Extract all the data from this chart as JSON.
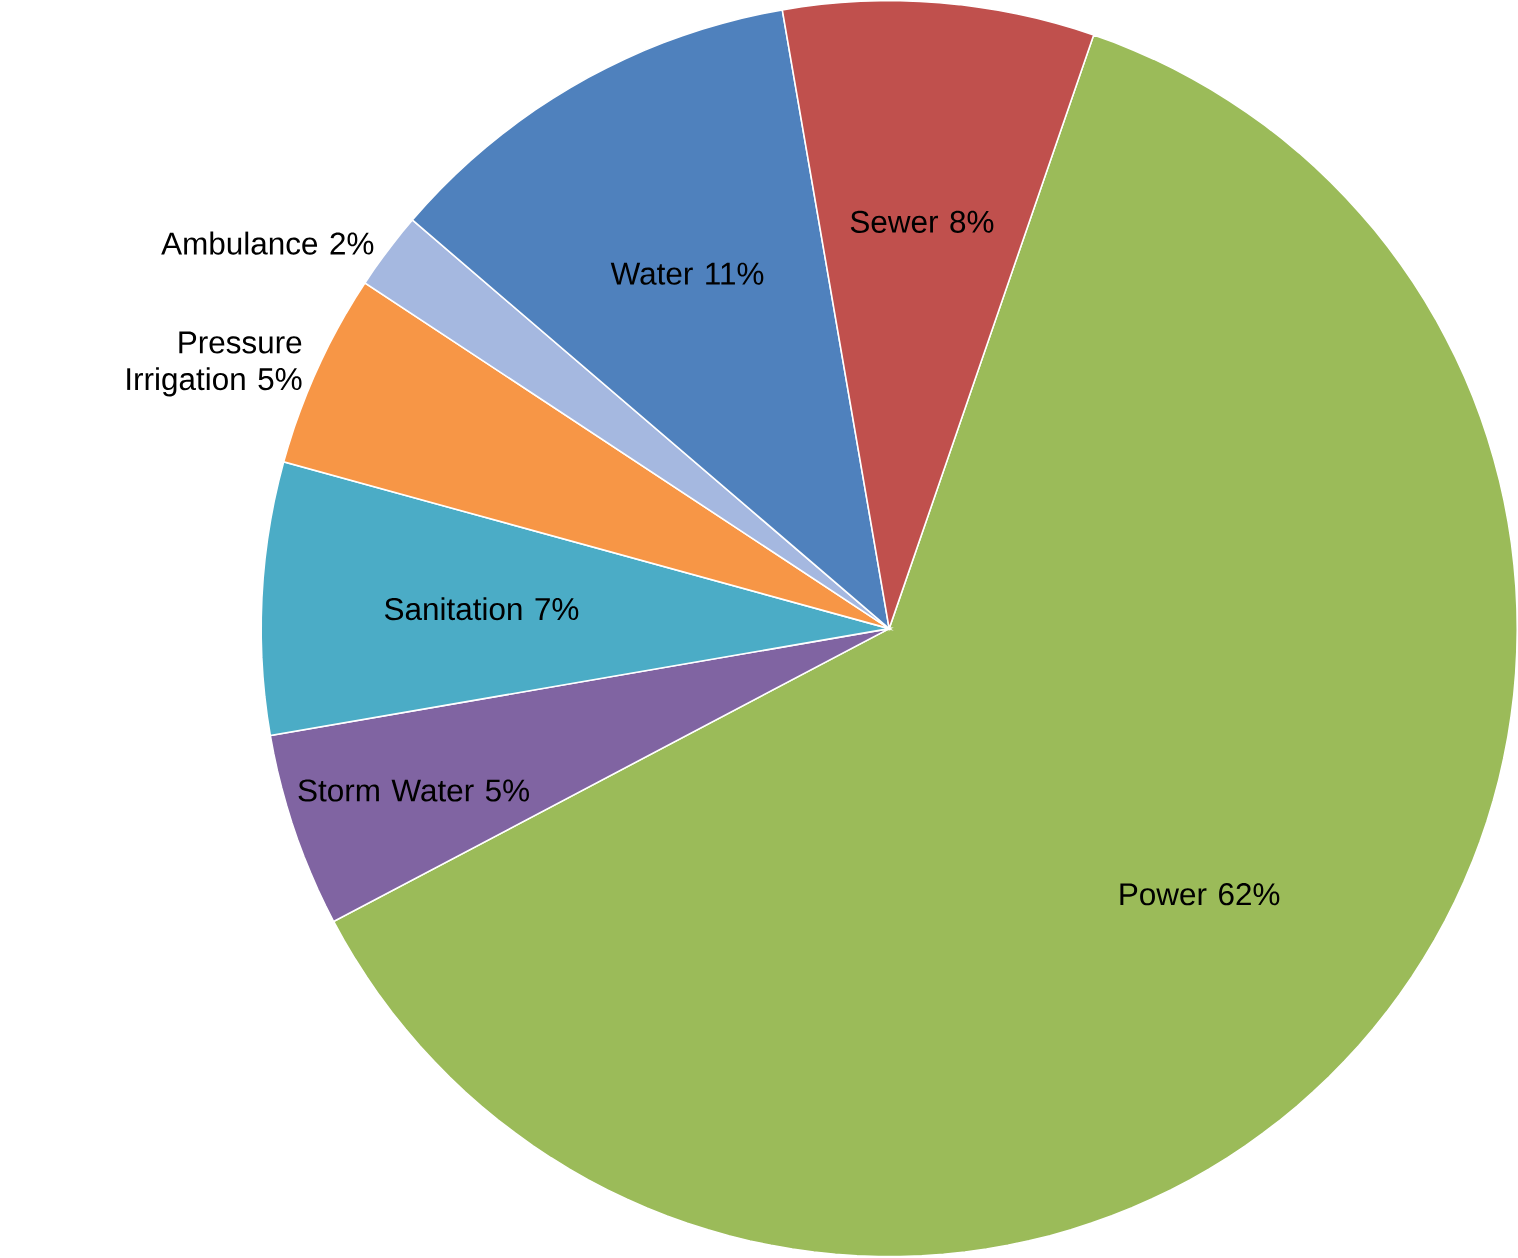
{
  "chart_data": {
    "type": "pie",
    "categories": [
      "Power",
      "Storm Water",
      "Sanitation",
      "Pressure Irrigation",
      "Ambulance",
      "Water",
      "Sewer"
    ],
    "values": [
      62,
      5,
      7,
      5,
      2,
      11,
      8
    ],
    "value_labels": [
      "62%",
      "5%",
      "7%",
      "5%",
      "2%",
      "11%",
      "8%"
    ],
    "colors": [
      "#9bbb59",
      "#8064a2",
      "#4bacc6",
      "#f79646",
      "#a5b8e0",
      "#4f81bd",
      "#c0504d"
    ]
  }
}
